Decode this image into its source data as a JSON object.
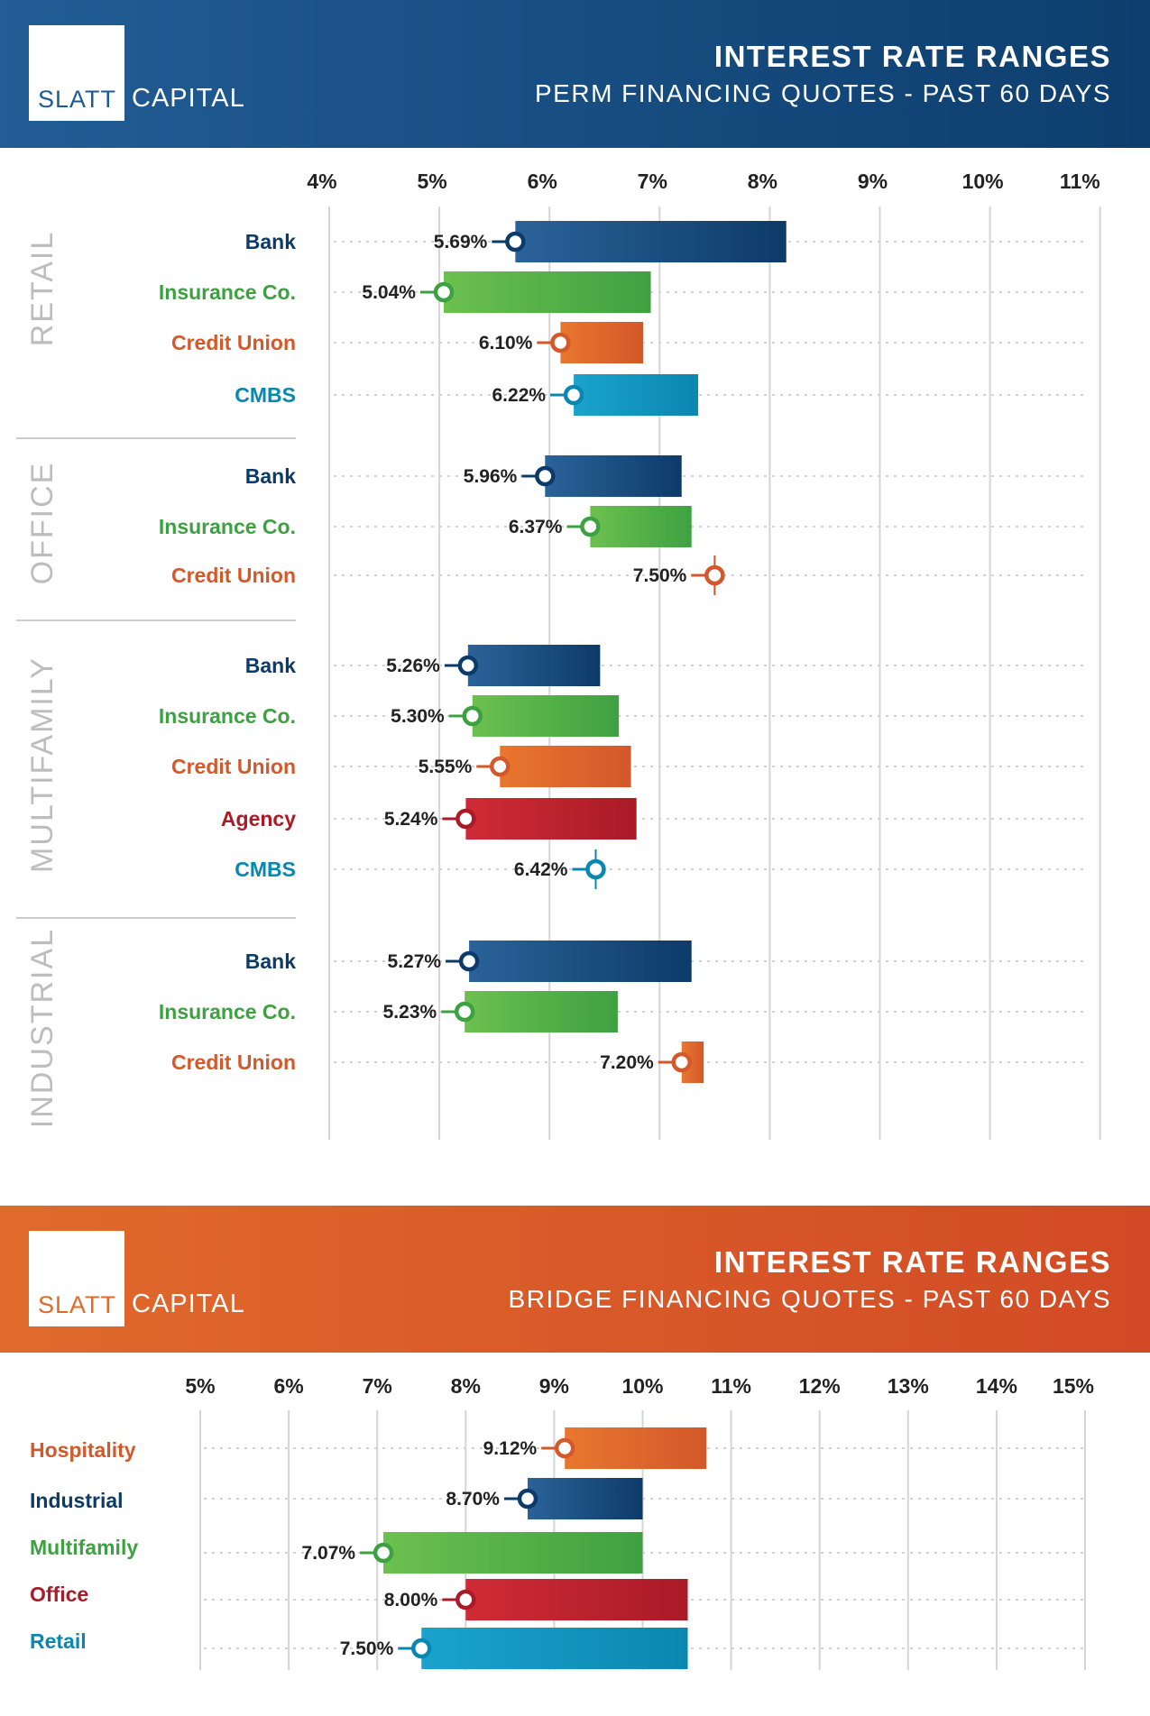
{
  "perm": {
    "logo": {
      "slatt": "SLATT",
      "capital": "CAPITAL"
    },
    "title": "INTEREST RATE RANGES",
    "subtitle": "PERM FINANCING QUOTES - PAST 60 DAYS"
  },
  "bridge": {
    "logo": {
      "slatt": "SLATT",
      "capital": "CAPITAL"
    },
    "title": "INTEREST RATE RANGES",
    "subtitle": "BRIDGE FINANCING QUOTES - PAST 60 DAYS"
  },
  "colors": {
    "bank": [
      "#2a6399",
      "#0d3b69"
    ],
    "insurance": [
      "#6cc04f",
      "#3ea141"
    ],
    "credit_union": [
      "#e9772f",
      "#d3582a"
    ],
    "cmbs": [
      "#1aa3cc",
      "#0a87b0"
    ],
    "agency": [
      "#cf2b36",
      "#a91b27"
    ],
    "section_label": "#bdbdbd"
  },
  "chart_data": [
    {
      "type": "bar",
      "title": "INTEREST RATE RANGES",
      "subtitle": "PERM FINANCING QUOTES - PAST 60 DAYS",
      "xlim": [
        4,
        11
      ],
      "x_ticks": [
        "4%",
        "5%",
        "6%",
        "7%",
        "8%",
        "9%",
        "10%",
        "11%"
      ],
      "grid": true,
      "groups": [
        {
          "name": "RETAIL",
          "rows": [
            {
              "lender": "Bank",
              "kind": "bank",
              "low": 5.69,
              "high": 8.15,
              "label": "5.69%"
            },
            {
              "lender": "Insurance Co.",
              "kind": "insurance",
              "low": 5.04,
              "high": 6.92,
              "label": "5.04%"
            },
            {
              "lender": "Credit Union",
              "kind": "credit_union",
              "low": 6.1,
              "high": 6.85,
              "label": "6.10%"
            },
            {
              "lender": "CMBS",
              "kind": "cmbs",
              "low": 6.22,
              "high": 7.35,
              "label": "6.22%"
            }
          ]
        },
        {
          "name": "OFFICE",
          "rows": [
            {
              "lender": "Bank",
              "kind": "bank",
              "low": 5.96,
              "high": 7.2,
              "label": "5.96%"
            },
            {
              "lender": "Insurance Co.",
              "kind": "insurance",
              "low": 6.37,
              "high": 7.29,
              "label": "6.37%"
            },
            {
              "lender": "Credit Union",
              "kind": "credit_union",
              "low": 7.5,
              "high": 7.5,
              "label": "7.50%"
            }
          ]
        },
        {
          "name": "MULTIFAMILY",
          "rows": [
            {
              "lender": "Bank",
              "kind": "bank",
              "low": 5.26,
              "high": 6.46,
              "label": "5.26%"
            },
            {
              "lender": "Insurance Co.",
              "kind": "insurance",
              "low": 5.3,
              "high": 6.63,
              "label": "5.30%"
            },
            {
              "lender": "Credit Union",
              "kind": "credit_union",
              "low": 5.55,
              "high": 6.74,
              "label": "5.55%"
            },
            {
              "lender": "Agency",
              "kind": "agency",
              "low": 5.24,
              "high": 6.79,
              "label": "5.24%"
            },
            {
              "lender": "CMBS",
              "kind": "cmbs",
              "low": 6.42,
              "high": 6.42,
              "label": "6.42%"
            }
          ]
        },
        {
          "name": "INDUSTRIAL",
          "rows": [
            {
              "lender": "Bank",
              "kind": "bank",
              "low": 5.27,
              "high": 7.29,
              "label": "5.27%"
            },
            {
              "lender": "Insurance Co.",
              "kind": "insurance",
              "low": 5.23,
              "high": 6.62,
              "label": "5.23%"
            },
            {
              "lender": "Credit Union",
              "kind": "credit_union",
              "low": 7.2,
              "high": 7.4,
              "label": "7.20%"
            }
          ]
        }
      ]
    },
    {
      "type": "bar",
      "title": "INTEREST RATE RANGES",
      "subtitle": "BRIDGE FINANCING QUOTES - PAST 60 DAYS",
      "xlim": [
        5,
        15
      ],
      "x_ticks": [
        "5%",
        "6%",
        "7%",
        "8%",
        "9%",
        "10%",
        "11%",
        "12%",
        "13%",
        "14%",
        "15%"
      ],
      "grid": true,
      "rows": [
        {
          "category": "Hospitality",
          "kind": "credit_union",
          "low": 9.12,
          "high": 10.72,
          "label": "9.12%"
        },
        {
          "category": "Industrial",
          "kind": "bank",
          "low": 8.7,
          "high": 10.0,
          "label": "8.70%"
        },
        {
          "category": "Multifamily",
          "kind": "insurance",
          "low": 7.07,
          "high": 10.0,
          "label": "7.07%"
        },
        {
          "category": "Office",
          "kind": "agency",
          "low": 8.0,
          "high": 10.51,
          "label": "8.00%"
        },
        {
          "category": "Retail",
          "kind": "cmbs",
          "low": 7.5,
          "high": 10.51,
          "label": "7.50%"
        }
      ]
    }
  ]
}
